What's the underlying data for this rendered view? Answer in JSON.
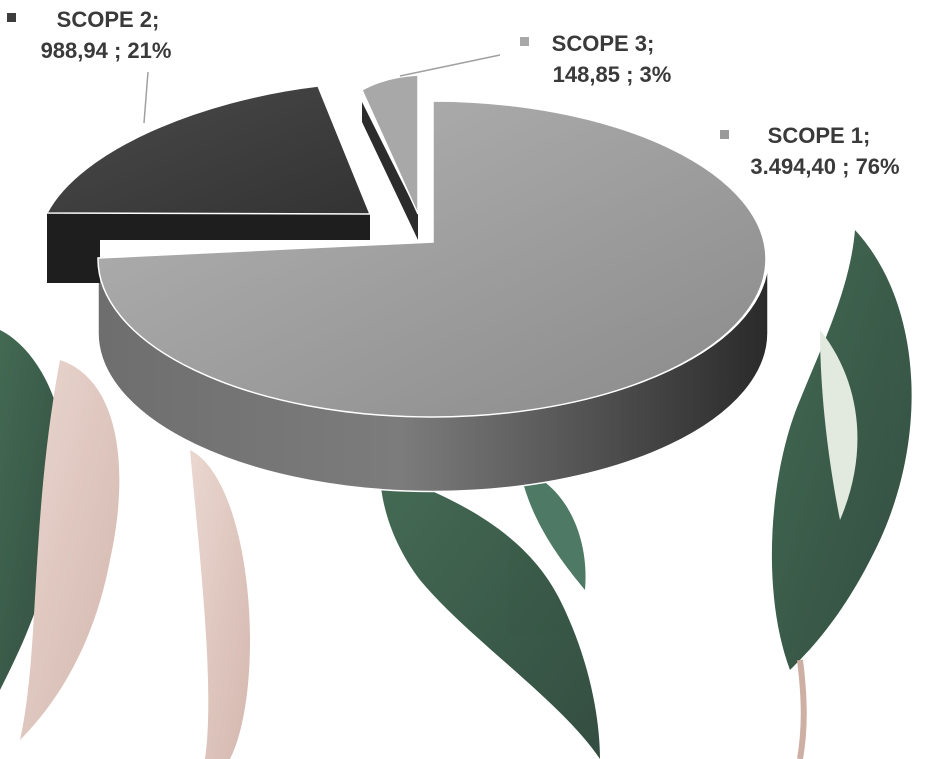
{
  "chart_data": {
    "type": "pie",
    "title": "",
    "style": "3d-exploded",
    "decoration": "watercolor-leaves-background",
    "slices": [
      {
        "name": "SCOPE 1",
        "value_text": "3.494,40",
        "percent_text": "76%",
        "value": 3494.4,
        "percent": 76,
        "color": "#9a9a9a"
      },
      {
        "name": "SCOPE 2",
        "value_text": "988,94",
        "percent_text": "21%",
        "value": 988.94,
        "percent": 21,
        "color": "#3d3d3d"
      },
      {
        "name": "SCOPE 3",
        "value_text": "148,85",
        "percent_text": "3%",
        "value": 148.85,
        "percent": 3,
        "color": "#a8a8a8"
      }
    ],
    "labels": [
      {
        "line1": "SCOPE 1;",
        "line2": "3.494,40 ; 76%"
      },
      {
        "line1": "SCOPE 2;",
        "line2": "988,94 ; 21%"
      },
      {
        "line1": "SCOPE 3;",
        "line2": "148,85 ; 3%"
      }
    ]
  }
}
